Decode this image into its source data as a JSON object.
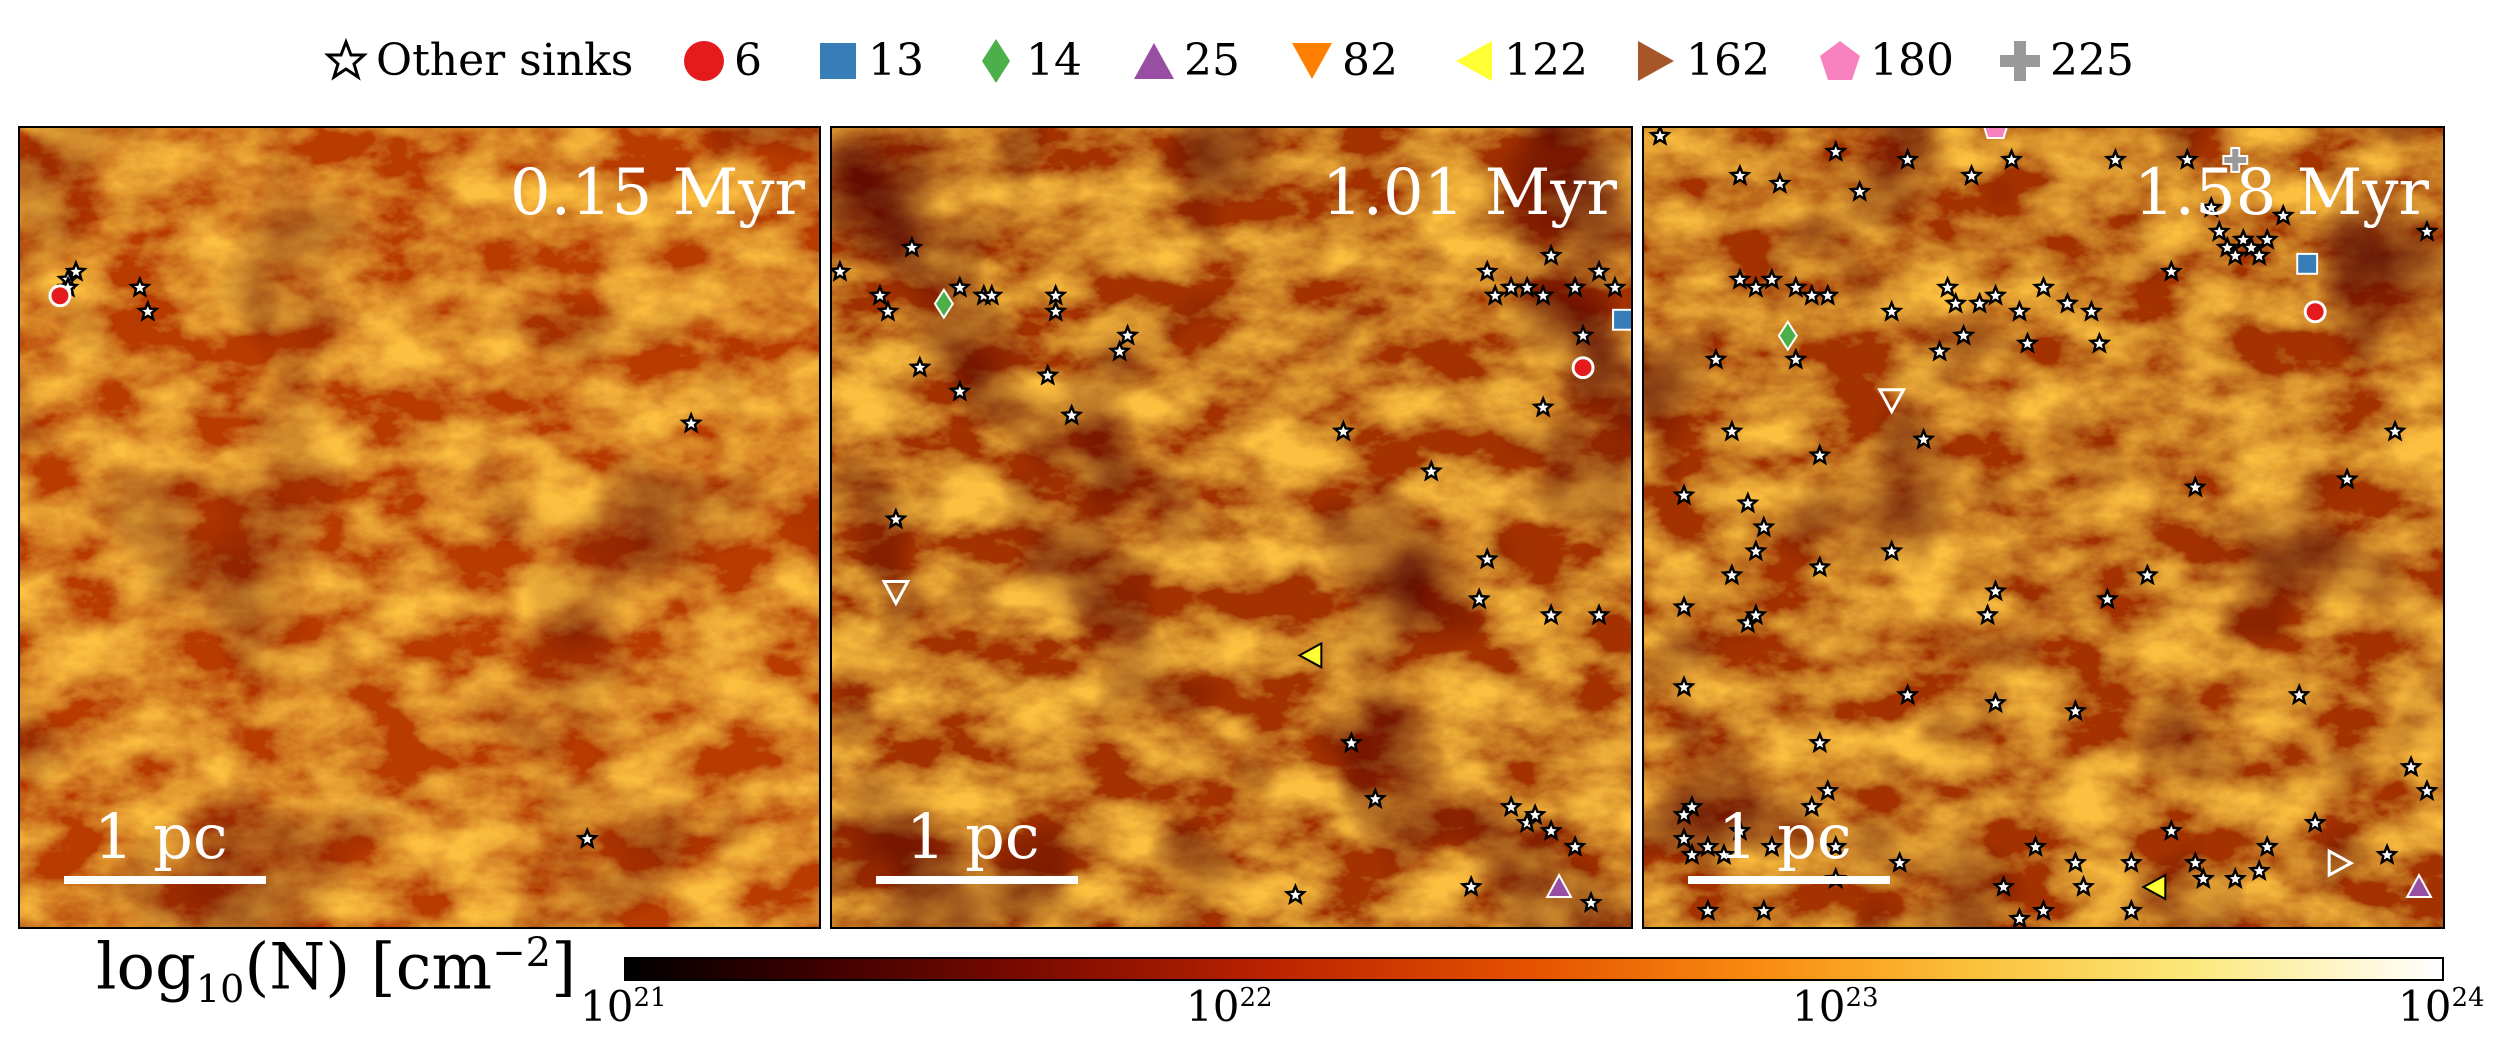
{
  "legend": [
    {
      "label": "Other sinks",
      "marker": "star",
      "color": "#ffffff"
    },
    {
      "label": "6",
      "marker": "circle",
      "color": "#e41a1c"
    },
    {
      "label": "13",
      "marker": "square",
      "color": "#377eb8"
    },
    {
      "label": "14",
      "marker": "diamond",
      "color": "#4daf4a"
    },
    {
      "label": "25",
      "marker": "triangle-up",
      "color": "#984ea3"
    },
    {
      "label": "82",
      "marker": "triangle-down",
      "color": "#ff7f00"
    },
    {
      "label": "122",
      "marker": "triangle-left",
      "color": "#ffff33"
    },
    {
      "label": "162",
      "marker": "triangle-right",
      "color": "#a65628"
    },
    {
      "label": "180",
      "marker": "pentagon",
      "color": "#f781bf"
    },
    {
      "label": "225",
      "marker": "plus",
      "color": "#999999"
    }
  ],
  "colorbar": {
    "label_prefix": "log",
    "label_sub": "10",
    "label_mid": "(N) [cm",
    "label_sup": "−2",
    "label_end": "]",
    "ticks": [
      {
        "base": "10",
        "exp": "21"
      },
      {
        "base": "10",
        "exp": "22"
      },
      {
        "base": "10",
        "exp": "23"
      },
      {
        "base": "10",
        "exp": "24"
      }
    ]
  },
  "chart_data": {
    "type": "heatmap",
    "quantity": "log10(N) [cm^-2]",
    "color_range": [
      1e+21,
      1e+24
    ],
    "colormap_stops": [
      "#000000",
      "#7a0a00",
      "#e55300",
      "#fbc03a",
      "#ffffff"
    ],
    "panels": [
      {
        "time": "0.15 Myr",
        "scale_bar": "1 pc",
        "named_sinks": [
          {
            "id": "6",
            "marker": "circle",
            "x": 0.05,
            "y": 0.79
          }
        ],
        "other_sinks": [
          [
            0.06,
            0.81
          ],
          [
            0.07,
            0.82
          ],
          [
            0.06,
            0.8
          ],
          [
            0.16,
            0.77
          ],
          [
            0.15,
            0.8
          ],
          [
            0.84,
            0.63
          ],
          [
            0.71,
            0.11
          ]
        ]
      },
      {
        "time": "1.01 Myr",
        "scale_bar": "1 pc",
        "named_sinks": [
          {
            "id": "6",
            "marker": "circle",
            "x": 0.94,
            "y": 0.7
          },
          {
            "id": "13",
            "marker": "square",
            "x": 0.99,
            "y": 0.76
          },
          {
            "id": "14",
            "marker": "diamond",
            "x": 0.14,
            "y": 0.78
          },
          {
            "id": "25",
            "marker": "triangle-up",
            "x": 0.91,
            "y": 0.05
          },
          {
            "id": "82",
            "marker": "triangle-down",
            "x": 0.08,
            "y": 0.42
          },
          {
            "id": "122",
            "marker": "triangle-left",
            "x": 0.6,
            "y": 0.34
          }
        ],
        "other_sinks": [
          [
            0.01,
            0.82
          ],
          [
            0.1,
            0.85
          ],
          [
            0.06,
            0.79
          ],
          [
            0.07,
            0.77
          ],
          [
            0.16,
            0.8
          ],
          [
            0.19,
            0.79
          ],
          [
            0.2,
            0.79
          ],
          [
            0.28,
            0.79
          ],
          [
            0.28,
            0.77
          ],
          [
            0.37,
            0.74
          ],
          [
            0.36,
            0.72
          ],
          [
            0.11,
            0.7
          ],
          [
            0.16,
            0.67
          ],
          [
            0.27,
            0.69
          ],
          [
            0.3,
            0.64
          ],
          [
            0.82,
            0.82
          ],
          [
            0.83,
            0.79
          ],
          [
            0.85,
            0.8
          ],
          [
            0.87,
            0.8
          ],
          [
            0.89,
            0.79
          ],
          [
            0.9,
            0.84
          ],
          [
            0.93,
            0.8
          ],
          [
            0.96,
            0.82
          ],
          [
            0.98,
            0.8
          ],
          [
            0.94,
            0.74
          ],
          [
            0.89,
            0.65
          ],
          [
            0.64,
            0.62
          ],
          [
            0.75,
            0.57
          ],
          [
            0.08,
            0.51
          ],
          [
            0.82,
            0.46
          ],
          [
            0.9,
            0.39
          ],
          [
            0.96,
            0.39
          ],
          [
            0.81,
            0.41
          ],
          [
            0.65,
            0.23
          ],
          [
            0.68,
            0.16
          ],
          [
            0.85,
            0.15
          ],
          [
            0.87,
            0.13
          ],
          [
            0.88,
            0.14
          ],
          [
            0.9,
            0.12
          ],
          [
            0.93,
            0.1
          ],
          [
            0.95,
            0.03
          ],
          [
            0.58,
            0.04
          ],
          [
            0.8,
            0.05
          ]
        ]
      },
      {
        "time": "1.58 Myr",
        "scale_bar": "1 pc",
        "named_sinks": [
          {
            "id": "6",
            "marker": "circle",
            "x": 0.84,
            "y": 0.77
          },
          {
            "id": "13",
            "marker": "square",
            "x": 0.83,
            "y": 0.83
          },
          {
            "id": "14",
            "marker": "diamond",
            "x": 0.18,
            "y": 0.74
          },
          {
            "id": "25",
            "marker": "triangle-up",
            "x": 0.97,
            "y": 0.05
          },
          {
            "id": "82",
            "marker": "triangle-down",
            "x": 0.31,
            "y": 0.66
          },
          {
            "id": "122",
            "marker": "triangle-left",
            "x": 0.64,
            "y": 0.05
          },
          {
            "id": "162",
            "marker": "triangle-right",
            "x": 0.87,
            "y": 0.08
          },
          {
            "id": "180",
            "marker": "pentagon",
            "x": 0.44,
            "y": 1.0
          },
          {
            "id": "225",
            "marker": "plus",
            "x": 0.74,
            "y": 0.96
          }
        ],
        "other_sinks": [
          [
            0.02,
            0.99
          ],
          [
            0.12,
            0.94
          ],
          [
            0.17,
            0.93
          ],
          [
            0.24,
            0.97
          ],
          [
            0.27,
            0.92
          ],
          [
            0.33,
            0.96
          ],
          [
            0.41,
            0.94
          ],
          [
            0.46,
            0.96
          ],
          [
            0.59,
            0.96
          ],
          [
            0.68,
            0.96
          ],
          [
            0.71,
            0.9
          ],
          [
            0.72,
            0.87
          ],
          [
            0.73,
            0.85
          ],
          [
            0.74,
            0.84
          ],
          [
            0.75,
            0.86
          ],
          [
            0.76,
            0.85
          ],
          [
            0.77,
            0.84
          ],
          [
            0.78,
            0.86
          ],
          [
            0.8,
            0.89
          ],
          [
            0.98,
            0.87
          ],
          [
            0.12,
            0.81
          ],
          [
            0.14,
            0.8
          ],
          [
            0.16,
            0.81
          ],
          [
            0.19,
            0.8
          ],
          [
            0.21,
            0.79
          ],
          [
            0.23,
            0.79
          ],
          [
            0.31,
            0.77
          ],
          [
            0.38,
            0.8
          ],
          [
            0.39,
            0.78
          ],
          [
            0.42,
            0.78
          ],
          [
            0.44,
            0.79
          ],
          [
            0.47,
            0.77
          ],
          [
            0.5,
            0.8
          ],
          [
            0.53,
            0.78
          ],
          [
            0.56,
            0.77
          ],
          [
            0.57,
            0.73
          ],
          [
            0.66,
            0.82
          ],
          [
            0.4,
            0.74
          ],
          [
            0.48,
            0.73
          ],
          [
            0.37,
            0.72
          ],
          [
            0.09,
            0.71
          ],
          [
            0.19,
            0.71
          ],
          [
            0.11,
            0.62
          ],
          [
            0.35,
            0.61
          ],
          [
            0.22,
            0.59
          ],
          [
            0.05,
            0.54
          ],
          [
            0.13,
            0.53
          ],
          [
            0.15,
            0.5
          ],
          [
            0.14,
            0.47
          ],
          [
            0.11,
            0.44
          ],
          [
            0.22,
            0.45
          ],
          [
            0.31,
            0.47
          ],
          [
            0.69,
            0.55
          ],
          [
            0.88,
            0.56
          ],
          [
            0.94,
            0.62
          ],
          [
            0.05,
            0.4
          ],
          [
            0.13,
            0.38
          ],
          [
            0.14,
            0.39
          ],
          [
            0.44,
            0.42
          ],
          [
            0.43,
            0.39
          ],
          [
            0.58,
            0.41
          ],
          [
            0.63,
            0.44
          ],
          [
            0.44,
            0.28
          ],
          [
            0.33,
            0.29
          ],
          [
            0.54,
            0.27
          ],
          [
            0.82,
            0.29
          ],
          [
            0.05,
            0.3
          ],
          [
            0.22,
            0.23
          ],
          [
            0.23,
            0.17
          ],
          [
            0.21,
            0.15
          ],
          [
            0.06,
            0.15
          ],
          [
            0.05,
            0.14
          ],
          [
            0.05,
            0.11
          ],
          [
            0.06,
            0.09
          ],
          [
            0.08,
            0.1
          ],
          [
            0.1,
            0.09
          ],
          [
            0.12,
            0.12
          ],
          [
            0.16,
            0.1
          ],
          [
            0.24,
            0.1
          ],
          [
            0.24,
            0.06
          ],
          [
            0.32,
            0.08
          ],
          [
            0.45,
            0.05
          ],
          [
            0.49,
            0.1
          ],
          [
            0.54,
            0.08
          ],
          [
            0.55,
            0.05
          ],
          [
            0.61,
            0.08
          ],
          [
            0.66,
            0.12
          ],
          [
            0.69,
            0.08
          ],
          [
            0.7,
            0.06
          ],
          [
            0.74,
            0.06
          ],
          [
            0.77,
            0.07
          ],
          [
            0.78,
            0.1
          ],
          [
            0.84,
            0.13
          ],
          [
            0.93,
            0.09
          ],
          [
            0.98,
            0.17
          ],
          [
            0.96,
            0.2
          ],
          [
            0.08,
            0.02
          ],
          [
            0.47,
            0.01
          ],
          [
            0.61,
            0.02
          ],
          [
            0.15,
            0.02
          ],
          [
            0.5,
            0.02
          ]
        ]
      }
    ]
  }
}
